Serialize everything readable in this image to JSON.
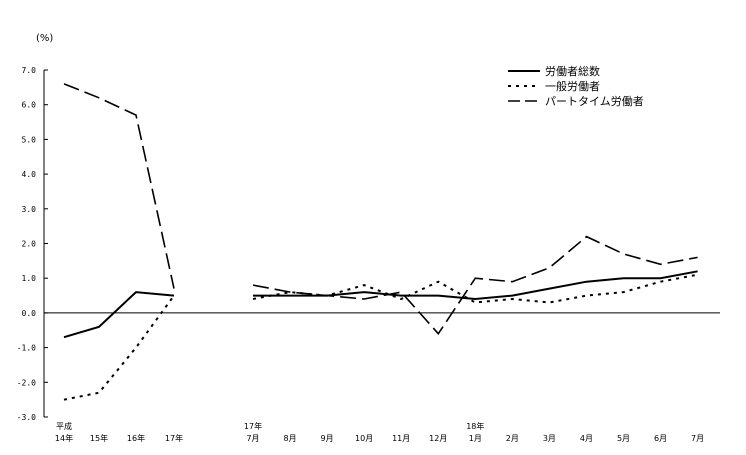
{
  "chart_data": {
    "type": "line",
    "unit_label": "(%)",
    "ylim": [
      -3.0,
      7.0
    ],
    "yticks": [
      "7.0",
      "6.0",
      "5.0",
      "4.0",
      "3.0",
      "2.0",
      "1.0",
      "0.0",
      "-1.0",
      "-2.0",
      "-3.0"
    ],
    "xlabels": [
      {
        "top": "平成",
        "bottom": "14年"
      },
      {
        "top": "",
        "bottom": "15年"
      },
      {
        "top": "",
        "bottom": "16年"
      },
      {
        "top": "",
        "bottom": "17年"
      },
      {
        "top": "17年",
        "bottom": "7月"
      },
      {
        "top": "",
        "bottom": "8月"
      },
      {
        "top": "",
        "bottom": "9月"
      },
      {
        "top": "",
        "bottom": "10月"
      },
      {
        "top": "",
        "bottom": "11月"
      },
      {
        "top": "",
        "bottom": "12月"
      },
      {
        "top": "18年",
        "bottom": "1月"
      },
      {
        "top": "",
        "bottom": "2月"
      },
      {
        "top": "",
        "bottom": "3月"
      },
      {
        "top": "",
        "bottom": "4月"
      },
      {
        "top": "",
        "bottom": "5月"
      },
      {
        "top": "",
        "bottom": "6月"
      },
      {
        "top": "",
        "bottom": "7月"
      }
    ],
    "series": [
      {
        "name": "労働者総数",
        "style": "solid",
        "annual": [
          -0.7,
          -0.4,
          0.6,
          0.5
        ],
        "monthly": [
          0.5,
          0.5,
          0.5,
          0.6,
          0.5,
          0.5,
          0.4,
          0.5,
          0.7,
          0.9,
          1.0,
          1.0,
          1.2
        ]
      },
      {
        "name": "一般労働者",
        "style": "dotted",
        "annual": [
          -2.5,
          -2.3,
          -1.0,
          0.5
        ],
        "monthly": [
          0.4,
          0.6,
          0.5,
          0.8,
          0.4,
          0.9,
          0.3,
          0.4,
          0.3,
          0.5,
          0.6,
          0.9,
          1.1
        ]
      },
      {
        "name": "パートタイム労働者",
        "style": "dashed",
        "annual": [
          6.6,
          6.2,
          5.7,
          0.7
        ],
        "monthly": [
          0.8,
          0.6,
          0.5,
          0.4,
          0.6,
          -0.6,
          1.0,
          0.9,
          1.3,
          2.2,
          1.7,
          1.4,
          1.6
        ]
      }
    ],
    "colors": {
      "line": "#000000",
      "axis": "#000000"
    }
  }
}
